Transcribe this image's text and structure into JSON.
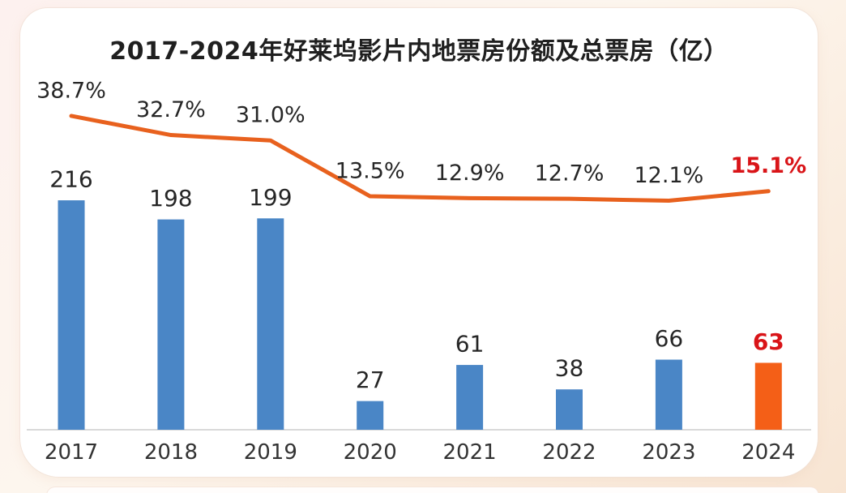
{
  "chart": {
    "title": "2017-2024年好莱坞影片内地票房份额及总票房（亿）"
  },
  "chart_data": {
    "type": "combo",
    "title": "2017-2024年好莱坞影片内地票房份额及总票房（亿）",
    "categories": [
      "2017",
      "2018",
      "2019",
      "2020",
      "2021",
      "2022",
      "2023",
      "2024"
    ],
    "series": [
      {
        "name": "总票房（亿）",
        "type": "bar",
        "values": [
          216,
          198,
          199,
          27,
          61,
          38,
          66,
          63
        ],
        "labels": [
          "216",
          "198",
          "199",
          "27",
          "61",
          "38",
          "66",
          "63"
        ]
      },
      {
        "name": "好莱坞影片内地票房份额",
        "type": "line",
        "values": [
          38.7,
          32.7,
          31.0,
          13.5,
          12.9,
          12.7,
          12.1,
          15.1
        ],
        "labels": [
          "38.7%",
          "32.7%",
          "31.0%",
          "13.5%",
          "12.9%",
          "12.7%",
          "12.1%",
          "15.1%"
        ]
      }
    ],
    "highlight_index": 7,
    "legend": "none",
    "gridlines": false,
    "y_axis": "hidden",
    "x_axis_line": true
  },
  "colors": {
    "bar_blue": "#4a86c6",
    "bar_highlight_orange": "#f45f17",
    "line_orange": "#e8611e",
    "highlight_label_red": "#d91418",
    "label_dark": "#262626",
    "year_label_gray": "#333333",
    "axis_gray": "#d9d9d9"
  }
}
